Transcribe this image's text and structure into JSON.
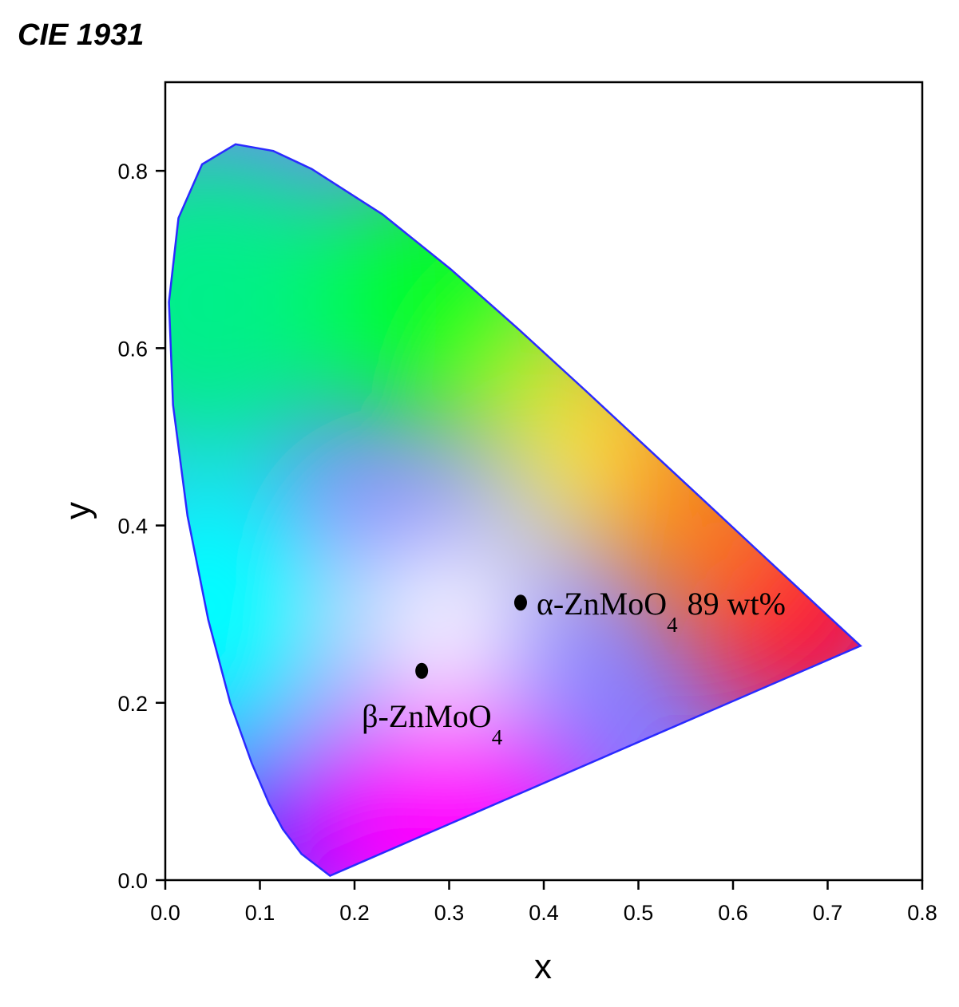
{
  "chart_data": {
    "type": "scatter",
    "title": "CIE 1931",
    "x_label": "x",
    "y_label": "y",
    "xlim": [
      0,
      0.8
    ],
    "ylim": [
      0,
      0.9
    ],
    "xticks": [
      {
        "value": 0,
        "label": "0.0"
      },
      0.1,
      0.2,
      0.3,
      0.4,
      0.5,
      0.6,
      0.7,
      0.8
    ],
    "yticks": [
      {
        "value": 0,
        "label": "0.0"
      },
      0.2,
      0.4,
      0.6,
      0.8
    ],
    "color": "#000000",
    "points": [
      {
        "x": 0.3755,
        "y": 0.313,
        "label": "α-ZnMoO",
        "subscript": "4",
        "suffix": "89 wt%"
      },
      {
        "x": 0.271,
        "y": 0.236,
        "label": "β-ZnMoO",
        "subscript": "4"
      }
    ]
  }
}
